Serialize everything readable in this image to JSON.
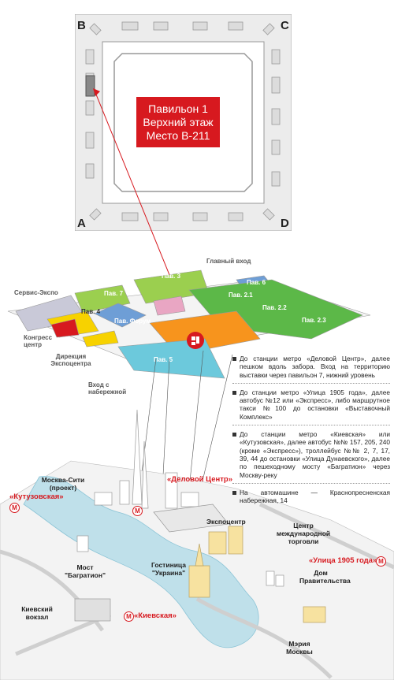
{
  "floorplan": {
    "corners": {
      "a": "A",
      "b": "B",
      "c": "C",
      "d": "D"
    },
    "callout": [
      "Павильон 1",
      "Верхний этаж",
      "Место В-211"
    ]
  },
  "expo": {
    "main_entrance": "Главный вход",
    "service_expo": "Сервис-Экспо",
    "congress": "Конгресс центр",
    "directorate": "Дирекция Экспоцентра",
    "embankment_entrance": "Вход с набережной",
    "pavilions": {
      "p3": "Пав. 3",
      "p6": "Пав. 6",
      "p7": "Пав. 7",
      "p21": "Пав. 2.1",
      "p22": "Пав. 2.2",
      "p23": "Пав. 2.3",
      "p4": "Пав. 4",
      "forum": "Пав. Форум",
      "p5": "Пав. 5"
    }
  },
  "directions": [
    "До станции метро «Деловой Центр», далее пешком вдоль забора. Вход на территорию выставки через павильон 7, нижний уровень",
    "До станции метро «Улица 1905 года», далее автобус №12 или «Экспресс», либо маршрутное такси №100 до остановки «Выставочный Комплекс»",
    "До станции метро «Киевская» или «Кутузовская», далее автобус №№ 157, 205, 240 (кроме «Экспресс»), троллейбус №№ 2, 7, 17, 39, 44 до остановки «Улица Дунаевского», далее по пешеходному мосту «Багратион» через Москву-реку",
    "На автомашине — Краснопресненская набережная, 14"
  ],
  "city": {
    "moscow_city": "Москва-Сити (проект)",
    "expocentre": "Экспоцентр",
    "wtc": "Центр международной торговли",
    "bagration": "Мост \"Багратион\"",
    "hotel": "Гостиница \"Украина\"",
    "govt": "Дом Правительства",
    "kiev_station": "Киевский вокзал",
    "mayor": "Мэрия Москвы"
  },
  "metro": {
    "delovoy": "«Деловой Центр»",
    "kutuzovskaya": "«Кутузовская»",
    "ulitsa1905": "«Улица 1905 года»",
    "kievskaya": "«Киевская»",
    "symbol": "М"
  },
  "colors": {
    "accent": "#d7191f",
    "green": "#5cb848",
    "lime": "#9bcf4f",
    "orange": "#f7941d",
    "cyan": "#6cc9dc",
    "blue": "#6e9ed6",
    "river": "#bfe0ea",
    "pink": "#e9a6c3"
  }
}
